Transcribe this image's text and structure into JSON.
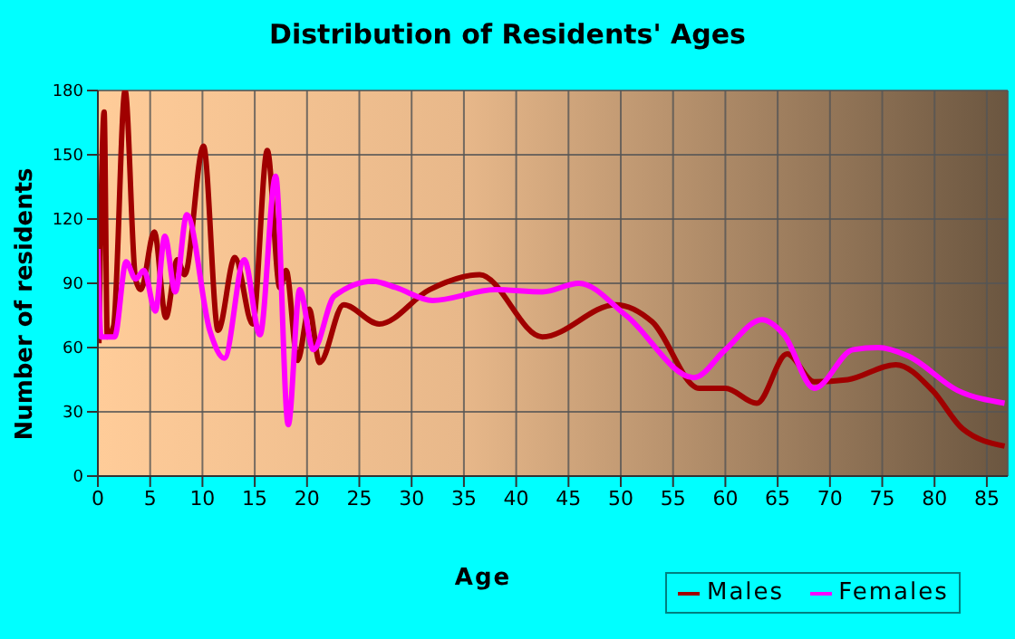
{
  "chart_data": {
    "type": "line",
    "title": "Distribution of Residents' Ages",
    "xlabel": "Age",
    "ylabel": "Number of residents",
    "xlim": [
      0,
      87
    ],
    "xticks": [
      0,
      5,
      10,
      15,
      20,
      25,
      30,
      35,
      40,
      45,
      50,
      55,
      60,
      65,
      70,
      75,
      80,
      85
    ],
    "ylim": [
      0,
      180
    ],
    "yticks": [
      0,
      30,
      60,
      90,
      120,
      150,
      180
    ],
    "grid": true,
    "legend": "bottom right",
    "marker": "none",
    "line_style": "solid",
    "series": [
      {
        "name": "Males",
        "color": "#a00000",
        "x": [
          0.1,
          0.6,
          0.9,
          1.5,
          2.6,
          3.6,
          4.1,
          5.4,
          6.5,
          7.6,
          8.3,
          10.1,
          11.5,
          13.1,
          14.8,
          16.2,
          17.4,
          18,
          19.1,
          20.2,
          21.2,
          23.5,
          26.9,
          31.7,
          36.5,
          42.5,
          49.5,
          53,
          57.5,
          60,
          63,
          65.9,
          68.5,
          71.7,
          76.3,
          79.8,
          82.7,
          86.7
        ],
        "values": [
          62,
          170,
          65,
          70,
          180,
          92,
          87,
          114,
          74,
          101,
          94,
          154,
          68,
          102,
          71,
          152,
          88,
          96,
          54,
          78,
          53,
          80,
          71,
          87,
          94,
          65,
          80,
          72,
          41,
          41,
          34,
          57,
          44,
          45,
          52,
          40,
          22,
          14
        ]
      },
      {
        "name": "Females",
        "color": "#ff00ff",
        "x": [
          0,
          0.3,
          1.6,
          2.7,
          3.6,
          4.4,
          5.5,
          6.4,
          7.4,
          8.5,
          10.7,
          12.1,
          14,
          15.5,
          17,
          18.2,
          19.3,
          20.6,
          22.6,
          26.3,
          28.5,
          32,
          38,
          42.5,
          46,
          50.5,
          57,
          60,
          63.5,
          65.6,
          68.5,
          72.2,
          74.6,
          77.5,
          82.2,
          86.7
        ],
        "values": [
          106,
          65,
          65,
          100,
          92,
          96,
          77,
          112,
          86,
          122,
          68,
          55,
          101,
          66,
          140,
          24,
          87,
          59,
          84,
          91,
          88,
          82,
          87,
          86,
          90,
          75,
          46,
          59,
          73,
          66,
          41,
          59,
          60,
          56,
          40,
          34
        ]
      }
    ]
  }
}
